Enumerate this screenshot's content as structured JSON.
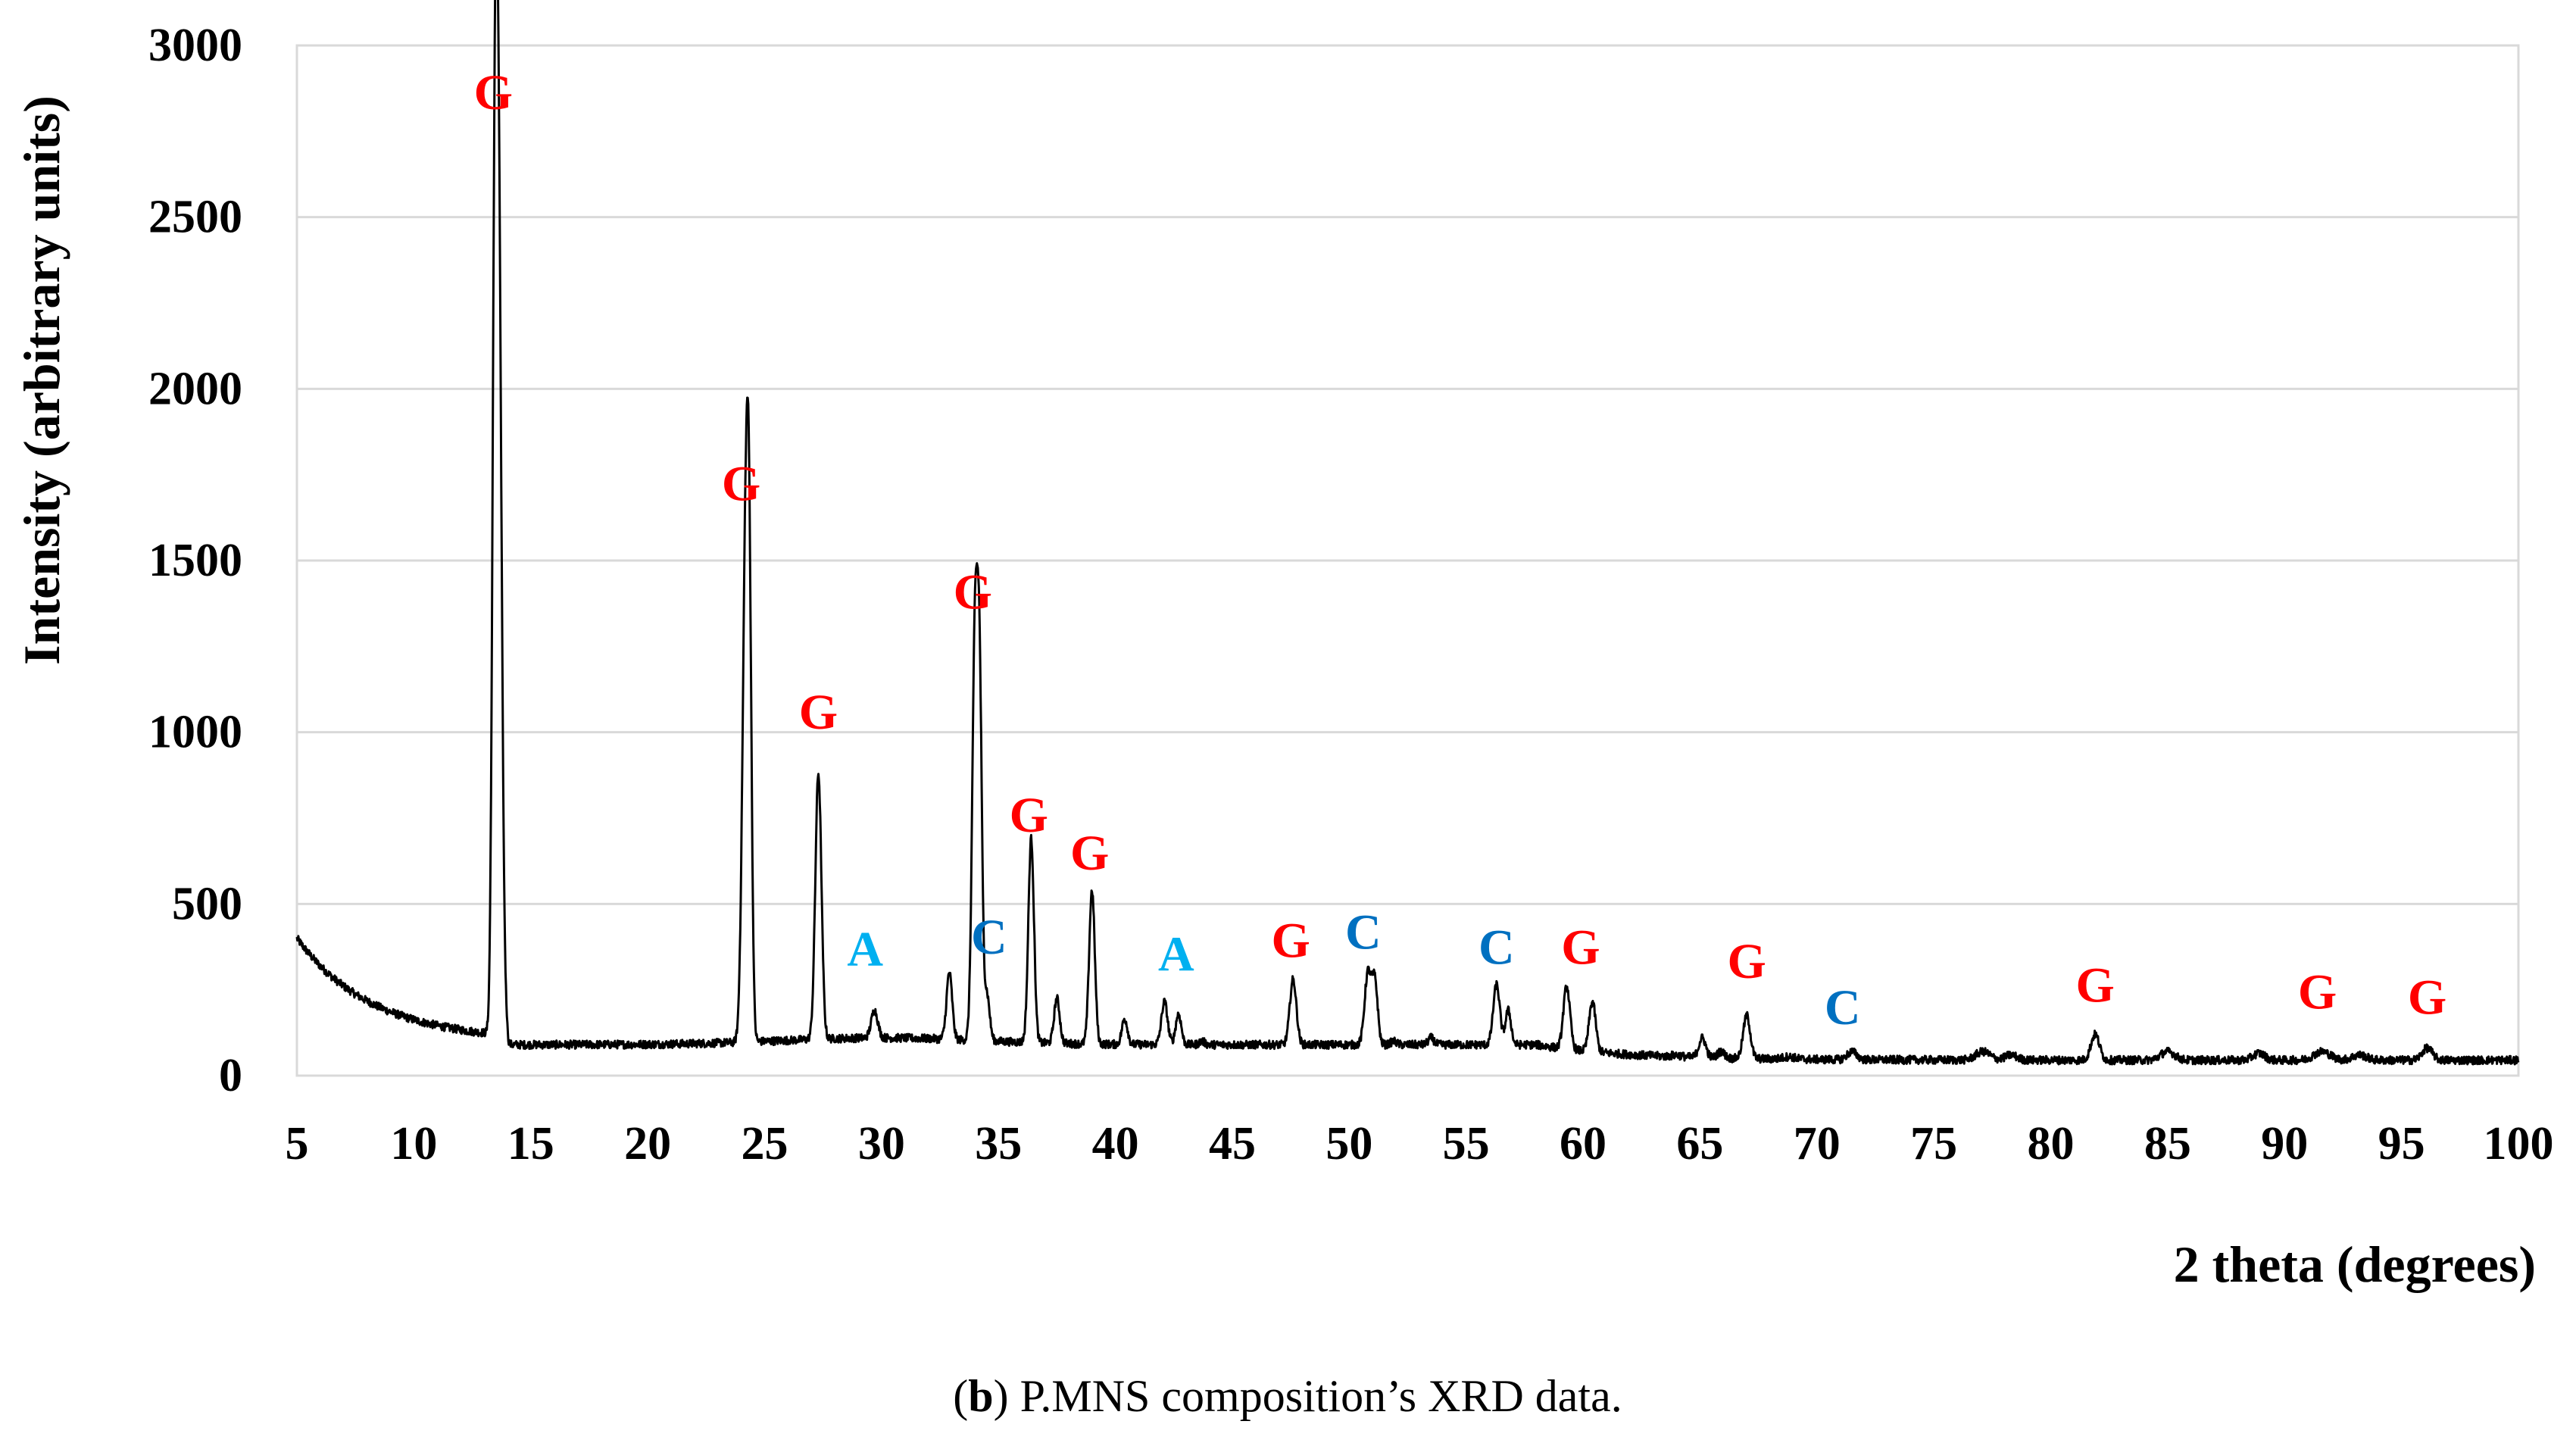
{
  "chart_data": {
    "type": "line",
    "title": "",
    "xlabel": "2 theta (degrees)",
    "ylabel": "Intensity (arbitrary units)",
    "xlim": [
      5,
      100
    ],
    "ylim": [
      0,
      3000
    ],
    "x_ticks": [
      5,
      10,
      15,
      20,
      25,
      30,
      35,
      40,
      45,
      50,
      55,
      60,
      65,
      70,
      75,
      80,
      85,
      90,
      95,
      100
    ],
    "y_ticks": [
      0,
      500,
      1000,
      1500,
      2000,
      2500,
      3000
    ],
    "grid": "horizontal",
    "line_color": "#000000",
    "background": {
      "start": 400,
      "decay_end": 100,
      "decay_tau": 3.2,
      "mid_level": 90,
      "late_level": 45,
      "noise": 12
    },
    "peaks": [
      {
        "x": 13.6,
        "y": 2720,
        "w": 0.14
      },
      {
        "x": 13.45,
        "y": 1450,
        "w": 0.1
      },
      {
        "x": 24.2,
        "y": 1570,
        "w": 0.14
      },
      {
        "x": 24.35,
        "y": 900,
        "w": 0.1
      },
      {
        "x": 27.3,
        "y": 880,
        "w": 0.13
      },
      {
        "x": 29.7,
        "y": 190,
        "w": 0.14
      },
      {
        "x": 32.9,
        "y": 300,
        "w": 0.12
      },
      {
        "x": 34.0,
        "y": 1290,
        "w": 0.12
      },
      {
        "x": 34.2,
        "y": 1000,
        "w": 0.1
      },
      {
        "x": 34.5,
        "y": 240,
        "w": 0.12
      },
      {
        "x": 36.4,
        "y": 690,
        "w": 0.12
      },
      {
        "x": 37.5,
        "y": 225,
        "w": 0.12
      },
      {
        "x": 39.0,
        "y": 540,
        "w": 0.12
      },
      {
        "x": 40.4,
        "y": 165,
        "w": 0.12
      },
      {
        "x": 42.1,
        "y": 215,
        "w": 0.13
      },
      {
        "x": 42.7,
        "y": 180,
        "w": 0.12
      },
      {
        "x": 43.7,
        "y": 100,
        "w": 0.12
      },
      {
        "x": 47.6,
        "y": 280,
        "w": 0.14
      },
      {
        "x": 50.8,
        "y": 300,
        "w": 0.14
      },
      {
        "x": 51.1,
        "y": 270,
        "w": 0.12
      },
      {
        "x": 51.9,
        "y": 100,
        "w": 0.12
      },
      {
        "x": 53.5,
        "y": 110,
        "w": 0.12
      },
      {
        "x": 56.3,
        "y": 265,
        "w": 0.14
      },
      {
        "x": 56.8,
        "y": 190,
        "w": 0.12
      },
      {
        "x": 59.3,
        "y": 260,
        "w": 0.14
      },
      {
        "x": 60.4,
        "y": 215,
        "w": 0.14
      },
      {
        "x": 64.0,
        "y": 60,
        "w": 0.2
      },
      {
        "x": 65.1,
        "y": 110,
        "w": 0.15
      },
      {
        "x": 65.9,
        "y": 70,
        "w": 0.15
      },
      {
        "x": 67.0,
        "y": 175,
        "w": 0.15
      },
      {
        "x": 68.8,
        "y": 55,
        "w": 0.25
      },
      {
        "x": 71.5,
        "y": 70,
        "w": 0.2
      },
      {
        "x": 77.1,
        "y": 70,
        "w": 0.3
      },
      {
        "x": 78.3,
        "y": 60,
        "w": 0.25
      },
      {
        "x": 81.9,
        "y": 120,
        "w": 0.18
      },
      {
        "x": 85.0,
        "y": 70,
        "w": 0.3
      },
      {
        "x": 88.9,
        "y": 65,
        "w": 0.25
      },
      {
        "x": 91.6,
        "y": 70,
        "w": 0.35
      },
      {
        "x": 93.2,
        "y": 60,
        "w": 0.3
      },
      {
        "x": 96.1,
        "y": 80,
        "w": 0.22
      }
    ],
    "annotations": [
      {
        "text": "G",
        "x": 13.4,
        "y": 2815,
        "color": "#ff0000"
      },
      {
        "text": "G",
        "x": 24.0,
        "y": 1675,
        "color": "#ff0000"
      },
      {
        "text": "G",
        "x": 27.3,
        "y": 1010,
        "color": "#ff0000"
      },
      {
        "text": "A",
        "x": 29.3,
        "y": 320,
        "color": "#00b0f0"
      },
      {
        "text": "G",
        "x": 33.9,
        "y": 1360,
        "color": "#ff0000"
      },
      {
        "text": "C",
        "x": 34.6,
        "y": 355,
        "color": "#0070c0"
      },
      {
        "text": "G",
        "x": 36.3,
        "y": 710,
        "color": "#ff0000"
      },
      {
        "text": "G",
        "x": 38.9,
        "y": 600,
        "color": "#ff0000"
      },
      {
        "text": "A",
        "x": 42.6,
        "y": 305,
        "color": "#00b0f0"
      },
      {
        "text": "G",
        "x": 47.5,
        "y": 345,
        "color": "#ff0000"
      },
      {
        "text": "C",
        "x": 50.6,
        "y": 370,
        "color": "#0070c0"
      },
      {
        "text": "C",
        "x": 56.3,
        "y": 325,
        "color": "#0070c0"
      },
      {
        "text": "G",
        "x": 59.9,
        "y": 325,
        "color": "#ff0000"
      },
      {
        "text": "G",
        "x": 67.0,
        "y": 285,
        "color": "#ff0000"
      },
      {
        "text": "C",
        "x": 71.1,
        "y": 150,
        "color": "#0070c0"
      },
      {
        "text": "G",
        "x": 81.9,
        "y": 215,
        "color": "#ff0000"
      },
      {
        "text": "G",
        "x": 91.4,
        "y": 195,
        "color": "#ff0000"
      },
      {
        "text": "G",
        "x": 96.1,
        "y": 180,
        "color": "#ff0000"
      }
    ],
    "caption": {
      "bold": "b",
      "text": " P.MNS composition’s XRD data."
    }
  }
}
